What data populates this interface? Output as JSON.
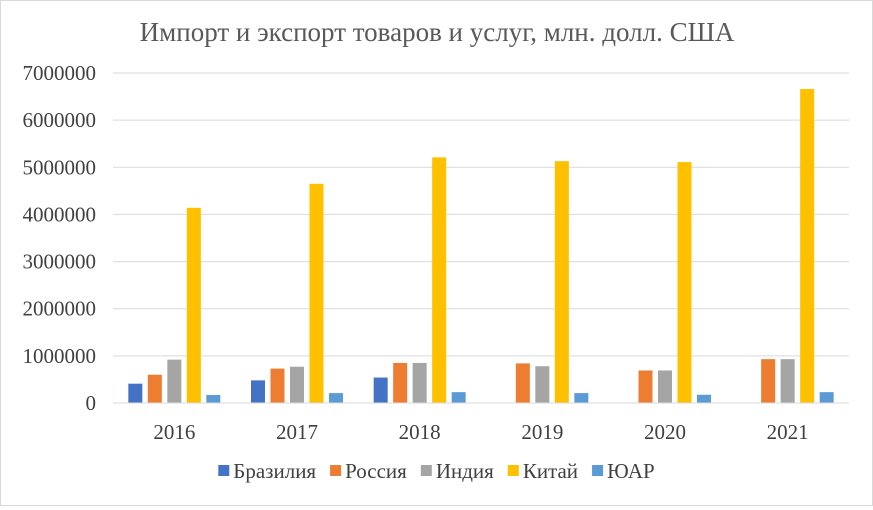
{
  "chart_data": {
    "type": "bar",
    "title": "Импорт и экспорт товаров и услуг, млн. долл. США",
    "xlabel": "",
    "ylabel": "",
    "categories": [
      "2016",
      "2017",
      "2018",
      "2019",
      "2020",
      "2021"
    ],
    "ylim": [
      0,
      7000000
    ],
    "yticks": [
      0,
      1000000,
      2000000,
      3000000,
      4000000,
      5000000,
      6000000,
      7000000
    ],
    "ytick_labels": [
      "0",
      "1000000",
      "2000000",
      "3000000",
      "4000000",
      "5000000",
      "6000000",
      "7000000"
    ],
    "grid": true,
    "legend_position": "bottom",
    "series": [
      {
        "name": "Бразилия",
        "color": "#4472c4",
        "values": [
          410000,
          480000,
          540000,
          null,
          null,
          null
        ]
      },
      {
        "name": "Россия",
        "color": "#ed7d31",
        "values": [
          600000,
          730000,
          850000,
          840000,
          690000,
          930000
        ]
      },
      {
        "name": "Индия",
        "color": "#a5a5a5",
        "values": [
          920000,
          770000,
          850000,
          780000,
          690000,
          930000
        ]
      },
      {
        "name": "Китай",
        "color": "#ffc000",
        "values": [
          4140000,
          4650000,
          5210000,
          5130000,
          5110000,
          6660000
        ]
      },
      {
        "name": "ЮАР",
        "color": "#5b9bd5",
        "values": [
          170000,
          210000,
          230000,
          210000,
          175000,
          230000
        ]
      }
    ]
  }
}
